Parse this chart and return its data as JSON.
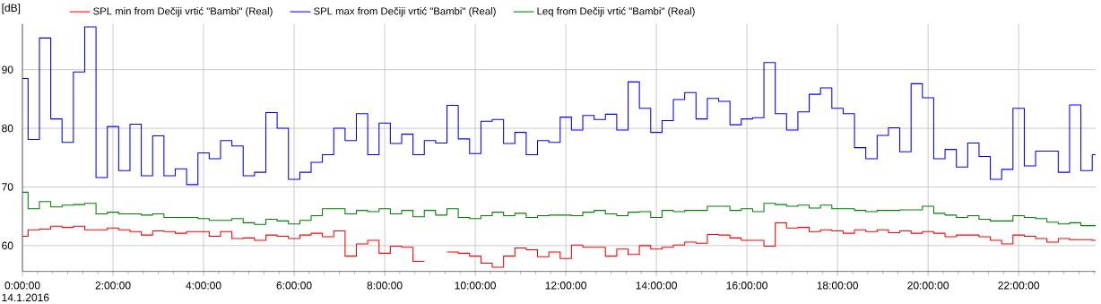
{
  "chart_data": {
    "type": "step",
    "ylabel": "[dB]",
    "annotations": [
      "14.1.2016"
    ],
    "x": [
      0,
      0.125,
      0.375,
      0.625,
      0.875,
      1.125,
      1.375,
      1.625,
      1.875,
      2.125,
      2.375,
      2.625,
      2.875,
      3.125,
      3.375,
      3.625,
      3.875,
      4.125,
      4.375,
      4.625,
      4.875,
      5.125,
      5.375,
      5.625,
      5.875,
      6.125,
      6.375,
      6.625,
      6.875,
      7.125,
      7.375,
      7.625,
      7.875,
      8.125,
      8.375,
      8.625,
      8.875,
      9.125,
      9.375,
      9.625,
      9.875,
      10.125,
      10.375,
      10.625,
      10.875,
      11.125,
      11.375,
      11.625,
      11.875,
      12.125,
      12.375,
      12.625,
      12.875,
      13.125,
      13.375,
      13.625,
      13.875,
      14.125,
      14.375,
      14.625,
      14.875,
      15.125,
      15.375,
      15.625,
      15.875,
      16.125,
      16.375,
      16.625,
      16.875,
      17.125,
      17.375,
      17.625,
      17.875,
      18.125,
      18.375,
      18.625,
      18.875,
      19.125,
      19.375,
      19.625,
      19.875,
      20.125,
      20.375,
      20.625,
      20.875,
      21.125,
      21.375,
      21.625,
      21.875,
      22.125,
      22.375,
      22.625,
      22.875,
      23.125,
      23.375,
      23.625
    ],
    "series": [
      {
        "name": "SPL min from Dečiji vrtić \"Bambi\" (Real)",
        "color": "#ff0000",
        "values": [
          61.6,
          62.7,
          62.8,
          63.3,
          63.1,
          63.3,
          62.7,
          62.7,
          63.0,
          62.7,
          62.4,
          61.8,
          62.5,
          62.4,
          62.1,
          62.4,
          62.4,
          61.6,
          62.4,
          61.2,
          61.3,
          60.9,
          61.8,
          61.6,
          61.2,
          61.8,
          62.1,
          61.5,
          62.5,
          58.2,
          60.3,
          60.9,
          58.7,
          59.9,
          59.7,
          57.3,
          57.3,
          null,
          58.9,
          58.7,
          58.2,
          57.0,
          56.3,
          58.2,
          59.6,
          59.3,
          58.1,
          58.9,
          57.8,
          60.1,
          59.7,
          59.7,
          58.2,
          59.4,
          58.5,
          60.0,
          59.4,
          59.7,
          60.1,
          60.6,
          60.4,
          61.9,
          61.8,
          61.3,
          60.9,
          60.9,
          59.9,
          63.9,
          63.0,
          63.1,
          62.4,
          62.7,
          62.5,
          62.1,
          62.7,
          62.4,
          62.7,
          62.2,
          62.5,
          62.1,
          62.4,
          62.1,
          61.5,
          61.8,
          61.8,
          61.5,
          60.9,
          60.3,
          61.8,
          61.6,
          61.2,
          60.6,
          61.2,
          61.0,
          61.0,
          60.9
        ]
      },
      {
        "name": "SPL max from Dečiji vrtić \"Bambi\" (Real)",
        "color": "#0000ff",
        "values": [
          88.5,
          78.1,
          95.4,
          81.6,
          77.6,
          89.6,
          97.3,
          71.6,
          80.3,
          72.8,
          80.7,
          71.9,
          78.7,
          71.9,
          73.1,
          70.4,
          75.8,
          74.8,
          77.9,
          77.0,
          71.9,
          72.5,
          82.7,
          80.0,
          71.3,
          72.5,
          74.2,
          75.5,
          80.0,
          77.9,
          82.5,
          75.5,
          80.9,
          77.4,
          79.0,
          75.5,
          77.9,
          77.5,
          83.9,
          78.2,
          75.7,
          81.2,
          81.5,
          77.4,
          79.3,
          75.5,
          77.9,
          77.6,
          81.9,
          79.7,
          82.2,
          81.5,
          82.4,
          79.7,
          87.9,
          83.4,
          79.3,
          81.3,
          84.9,
          86.1,
          81.6,
          85.1,
          84.6,
          80.6,
          81.6,
          81.8,
          91.2,
          82.5,
          79.7,
          82.8,
          85.8,
          86.9,
          83.4,
          82.5,
          76.7,
          74.8,
          78.8,
          80.1,
          76.0,
          87.6,
          85.2,
          74.8,
          76.4,
          73.4,
          77.5,
          75.2,
          71.3,
          73.0,
          83.4,
          73.6,
          76.1,
          76.1,
          72.5,
          84.0,
          72.8,
          75.5
        ]
      },
      {
        "name": "Leq from Dečiji vrtić \"Bambi\" (Real)",
        "color": "#008000",
        "values": [
          69.1,
          66.3,
          67.5,
          66.6,
          66.9,
          67.0,
          67.2,
          65.4,
          65.7,
          65.4,
          65.4,
          65.2,
          65.4,
          64.8,
          64.8,
          64.8,
          64.6,
          64.3,
          64.3,
          64.6,
          63.9,
          63.6,
          64.5,
          64.2,
          63.7,
          64.3,
          65.1,
          66.3,
          66.3,
          65.4,
          66.0,
          65.8,
          66.3,
          65.4,
          66.0,
          64.9,
          66.0,
          65.2,
          66.3,
          64.8,
          64.6,
          65.1,
          65.7,
          65.1,
          65.5,
          64.8,
          65.1,
          65.2,
          65.2,
          65.1,
          65.7,
          66.0,
          65.4,
          65.1,
          65.7,
          65.8,
          64.8,
          66.0,
          65.8,
          66.0,
          66.0,
          66.7,
          66.7,
          66.0,
          66.3,
          65.8,
          67.2,
          67.0,
          66.7,
          66.9,
          66.4,
          66.9,
          66.3,
          66.3,
          66.0,
          65.8,
          66.0,
          66.0,
          66.1,
          66.1,
          66.7,
          65.5,
          65.2,
          64.8,
          65.1,
          64.5,
          64.2,
          64.2,
          65.1,
          64.8,
          64.6,
          64.0,
          63.7,
          63.9,
          63.4,
          63.4
        ]
      }
    ],
    "xlim": [
      0,
      23.7
    ],
    "xticks": [
      {
        "value": 0,
        "label": "0:00:00"
      },
      {
        "value": 0.333,
        "label": null
      },
      {
        "value": 0.667,
        "label": null
      },
      {
        "value": 1,
        "label": null
      },
      {
        "value": 1.333,
        "label": null
      },
      {
        "value": 1.667,
        "label": null
      },
      {
        "value": 2,
        "label": "2:00:00"
      },
      {
        "value": 2.333,
        "label": null
      },
      {
        "value": 2.667,
        "label": null
      },
      {
        "value": 3,
        "label": null
      },
      {
        "value": 3.333,
        "label": null
      },
      {
        "value": 3.667,
        "label": null
      },
      {
        "value": 4,
        "label": "4:00:00"
      },
      {
        "value": 4.333,
        "label": null
      },
      {
        "value": 4.667,
        "label": null
      },
      {
        "value": 5,
        "label": null
      },
      {
        "value": 5.333,
        "label": null
      },
      {
        "value": 5.667,
        "label": null
      },
      {
        "value": 6,
        "label": "6:00:00"
      },
      {
        "value": 6.333,
        "label": null
      },
      {
        "value": 6.667,
        "label": null
      },
      {
        "value": 7,
        "label": null
      },
      {
        "value": 7.333,
        "label": null
      },
      {
        "value": 7.667,
        "label": null
      },
      {
        "value": 8,
        "label": "8:00:00"
      },
      {
        "value": 8.333,
        "label": null
      },
      {
        "value": 8.667,
        "label": null
      },
      {
        "value": 9,
        "label": null
      },
      {
        "value": 9.333,
        "label": null
      },
      {
        "value": 9.667,
        "label": null
      },
      {
        "value": 10,
        "label": "10:00:00"
      },
      {
        "value": 10.333,
        "label": null
      },
      {
        "value": 10.667,
        "label": null
      },
      {
        "value": 11,
        "label": null
      },
      {
        "value": 11.333,
        "label": null
      },
      {
        "value": 11.667,
        "label": null
      },
      {
        "value": 12,
        "label": "12:00:00"
      },
      {
        "value": 12.333,
        "label": null
      },
      {
        "value": 12.667,
        "label": null
      },
      {
        "value": 13,
        "label": null
      },
      {
        "value": 13.333,
        "label": null
      },
      {
        "value": 13.667,
        "label": null
      },
      {
        "value": 14,
        "label": "14:00:00"
      },
      {
        "value": 14.333,
        "label": null
      },
      {
        "value": 14.667,
        "label": null
      },
      {
        "value": 15,
        "label": null
      },
      {
        "value": 15.333,
        "label": null
      },
      {
        "value": 15.667,
        "label": null
      },
      {
        "value": 16,
        "label": "16:00:00"
      },
      {
        "value": 16.333,
        "label": null
      },
      {
        "value": 16.667,
        "label": null
      },
      {
        "value": 17,
        "label": null
      },
      {
        "value": 17.333,
        "label": null
      },
      {
        "value": 17.667,
        "label": null
      },
      {
        "value": 18,
        "label": "18:00:00"
      },
      {
        "value": 18.333,
        "label": null
      },
      {
        "value": 18.667,
        "label": null
      },
      {
        "value": 19,
        "label": null
      },
      {
        "value": 19.333,
        "label": null
      },
      {
        "value": 19.667,
        "label": null
      },
      {
        "value": 20,
        "label": "20:00:00"
      },
      {
        "value": 20.333,
        "label": null
      },
      {
        "value": 20.667,
        "label": null
      },
      {
        "value": 21,
        "label": null
      },
      {
        "value": 21.333,
        "label": null
      },
      {
        "value": 21.667,
        "label": null
      },
      {
        "value": 22,
        "label": "22:00:00"
      },
      {
        "value": 22.333,
        "label": null
      },
      {
        "value": 22.667,
        "label": null
      },
      {
        "value": 23,
        "label": null
      },
      {
        "value": 23.333,
        "label": null
      },
      {
        "value": 23.667,
        "label": null
      }
    ],
    "ylim": [
      55.6,
      97.8
    ],
    "yticks": [
      60,
      70,
      80,
      90
    ],
    "grid": true,
    "legend": "top left"
  }
}
